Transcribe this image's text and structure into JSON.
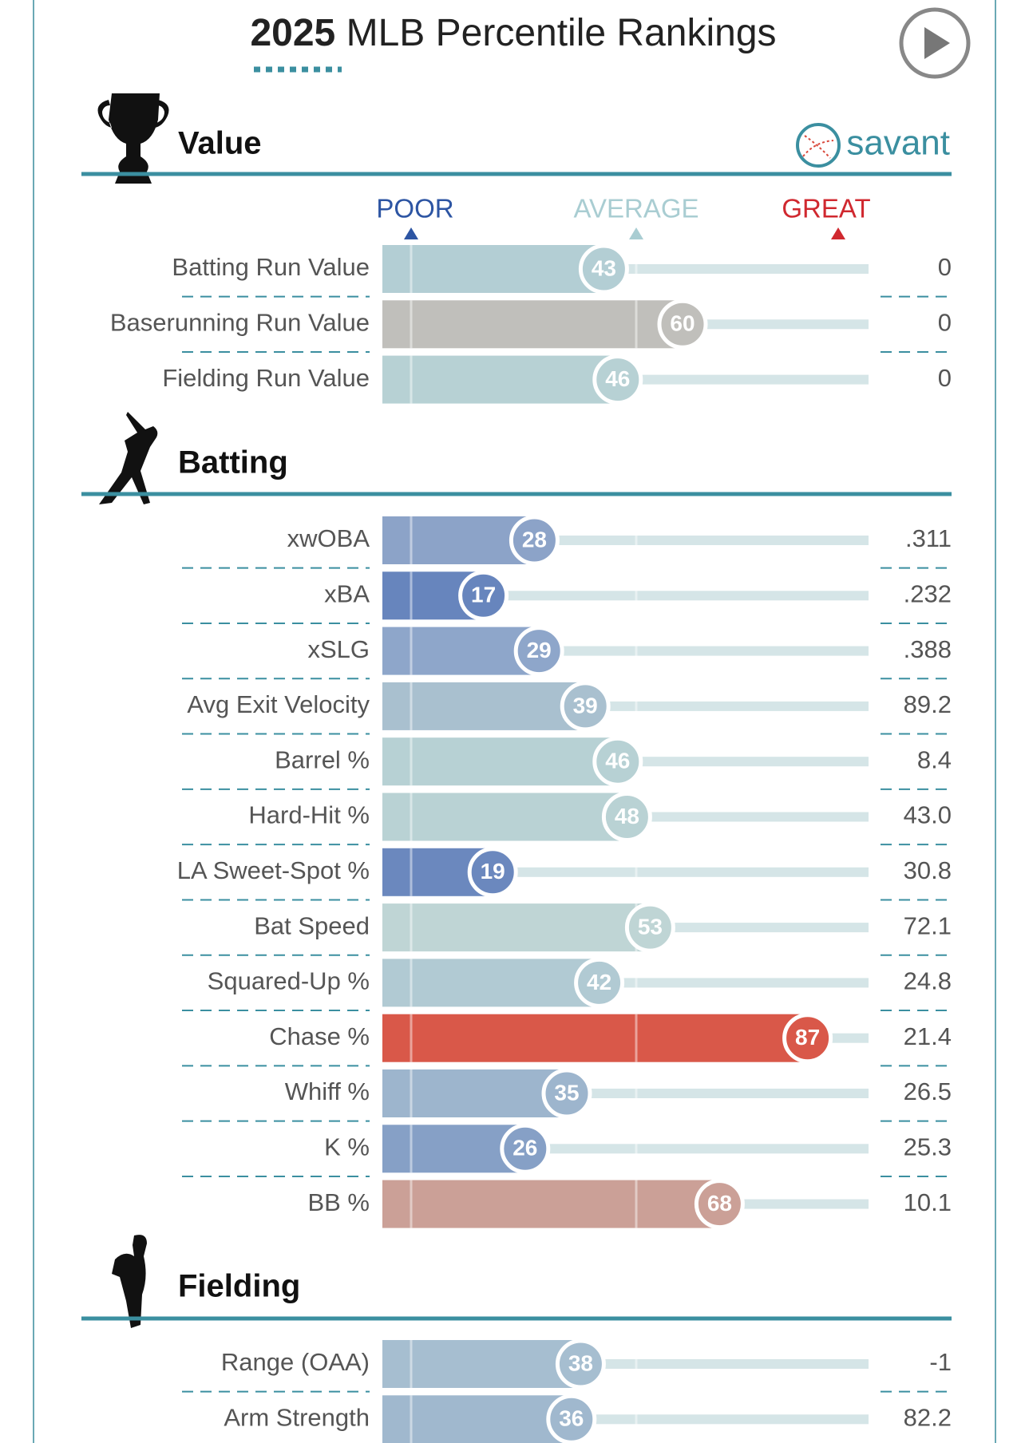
{
  "title_year": "2025",
  "title": "MLB Percentile Rankings",
  "brand": "savant",
  "legend": {
    "poor": "POOR",
    "average": "AVERAGE",
    "great": "GREAT"
  },
  "sections": [
    {
      "name": "Value",
      "metrics": [
        {
          "label": "Batting Run Value",
          "percentile": 43,
          "value": "0",
          "color": "#b3ced4"
        },
        {
          "label": "Baserunning Run Value",
          "percentile": 60,
          "value": "0",
          "color": "#c0bfbb"
        },
        {
          "label": "Fielding Run Value",
          "percentile": 46,
          "value": "0",
          "color": "#b7d1d4"
        }
      ]
    },
    {
      "name": "Batting",
      "metrics": [
        {
          "label": "xwOBA",
          "percentile": 28,
          "value": ".311",
          "color": "#8ca3c8"
        },
        {
          "label": "xBA",
          "percentile": 17,
          "value": ".232",
          "color": "#6785bd"
        },
        {
          "label": "xSLG",
          "percentile": 29,
          "value": ".388",
          "color": "#8ea6ca"
        },
        {
          "label": "Avg Exit Velocity",
          "percentile": 39,
          "value": "89.2",
          "color": "#a9c0cf"
        },
        {
          "label": "Barrel %",
          "percentile": 46,
          "value": "8.4",
          "color": "#b7d1d4"
        },
        {
          "label": "Hard-Hit %",
          "percentile": 48,
          "value": "43.0",
          "color": "#b9d2d4"
        },
        {
          "label": "LA Sweet-Spot %",
          "percentile": 19,
          "value": "30.8",
          "color": "#6b88be"
        },
        {
          "label": "Bat Speed",
          "percentile": 53,
          "value": "72.1",
          "color": "#bfd5d5"
        },
        {
          "label": "Squared-Up %",
          "percentile": 42,
          "value": "24.8",
          "color": "#b1cad3"
        },
        {
          "label": "Chase %",
          "percentile": 87,
          "value": "21.4",
          "color": "#d95849"
        },
        {
          "label": "Whiff %",
          "percentile": 35,
          "value": "26.5",
          "color": "#9db5cd"
        },
        {
          "label": "K %",
          "percentile": 26,
          "value": "25.3",
          "color": "#86a0c6"
        },
        {
          "label": "BB %",
          "percentile": 68,
          "value": "10.1",
          "color": "#cba097"
        }
      ]
    },
    {
      "name": "Fielding",
      "metrics": [
        {
          "label": "Range (OAA)",
          "percentile": 38,
          "value": "-1",
          "color": "#a6bed0"
        },
        {
          "label": "Arm Strength",
          "percentile": 36,
          "value": "82.2",
          "color": "#a0b8ce"
        }
      ]
    }
  ]
}
